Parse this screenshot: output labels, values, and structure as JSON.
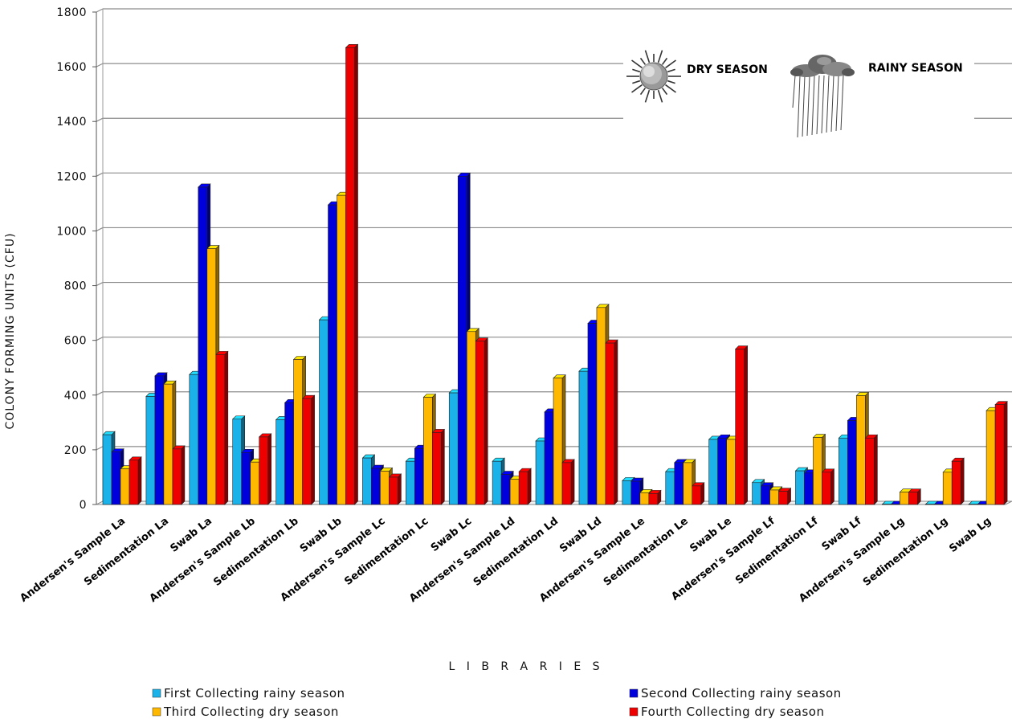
{
  "chart_data": {
    "type": "bar",
    "title": "",
    "xlabel": "L I B R A R I E S",
    "ylabel": "COLONY FORMING UNITS (CFU)",
    "ylim": [
      0,
      1800
    ],
    "yticks": [
      "0",
      "200",
      "400",
      "600",
      "800",
      "1000",
      "1200",
      "1400",
      "1600",
      "1800"
    ],
    "grid": true,
    "style": "3d-bars",
    "categories": [
      "Andersen's Sample La",
      "Sedimentation La",
      "Swab La",
      "Andersen's Sample Lb",
      "Sedimentation Lb",
      "Swab Lb",
      "Andersen's Sample Lc",
      "Sedimentation Lc",
      "Swab Lc",
      "Andersen's Sample Ld",
      "Sedimentation Ld",
      "Swab Ld",
      "Andersen's Sample Le",
      "Sedimentation Le",
      "Swab Le",
      "Andersen's Sample Lf",
      "Sedimentation Lf",
      "Swab Lf",
      "Andersen's Sample Lg",
      "Sedimentation Lg",
      "Swab Lg"
    ],
    "series": [
      {
        "name": "First Collecting rainy season",
        "color": "#1ab2e8",
        "values": [
          255,
          395,
          475,
          312,
          310,
          675,
          170,
          158,
          408,
          158,
          232,
          487,
          87,
          120,
          238,
          80,
          123,
          243,
          0,
          0,
          0
        ]
      },
      {
        "name": "Second Collecting rainy season",
        "color": "#0000dd",
        "values": [
          192,
          470,
          1160,
          190,
          372,
          1095,
          132,
          205,
          1200,
          110,
          338,
          662,
          85,
          153,
          243,
          68,
          115,
          307,
          0,
          0,
          0
        ]
      },
      {
        "name": "Third Collecting dry season",
        "color": "#ffb800",
        "values": [
          130,
          440,
          935,
          155,
          530,
          1130,
          122,
          392,
          632,
          92,
          462,
          720,
          43,
          153,
          238,
          53,
          245,
          398,
          45,
          118,
          343
        ]
      },
      {
        "name": "Fourth Collecting dry season",
        "color": "#ee0000",
        "values": [
          162,
          203,
          548,
          247,
          387,
          1670,
          100,
          263,
          597,
          120,
          153,
          590,
          40,
          68,
          568,
          48,
          118,
          243,
          45,
          158,
          365
        ]
      }
    ],
    "legend": "bottom",
    "annotations": [
      {
        "text": "DRY SEASON",
        "icon": "sun-icon"
      },
      {
        "text": "RAINY SEASON",
        "icon": "rain-cloud-icon"
      }
    ]
  }
}
